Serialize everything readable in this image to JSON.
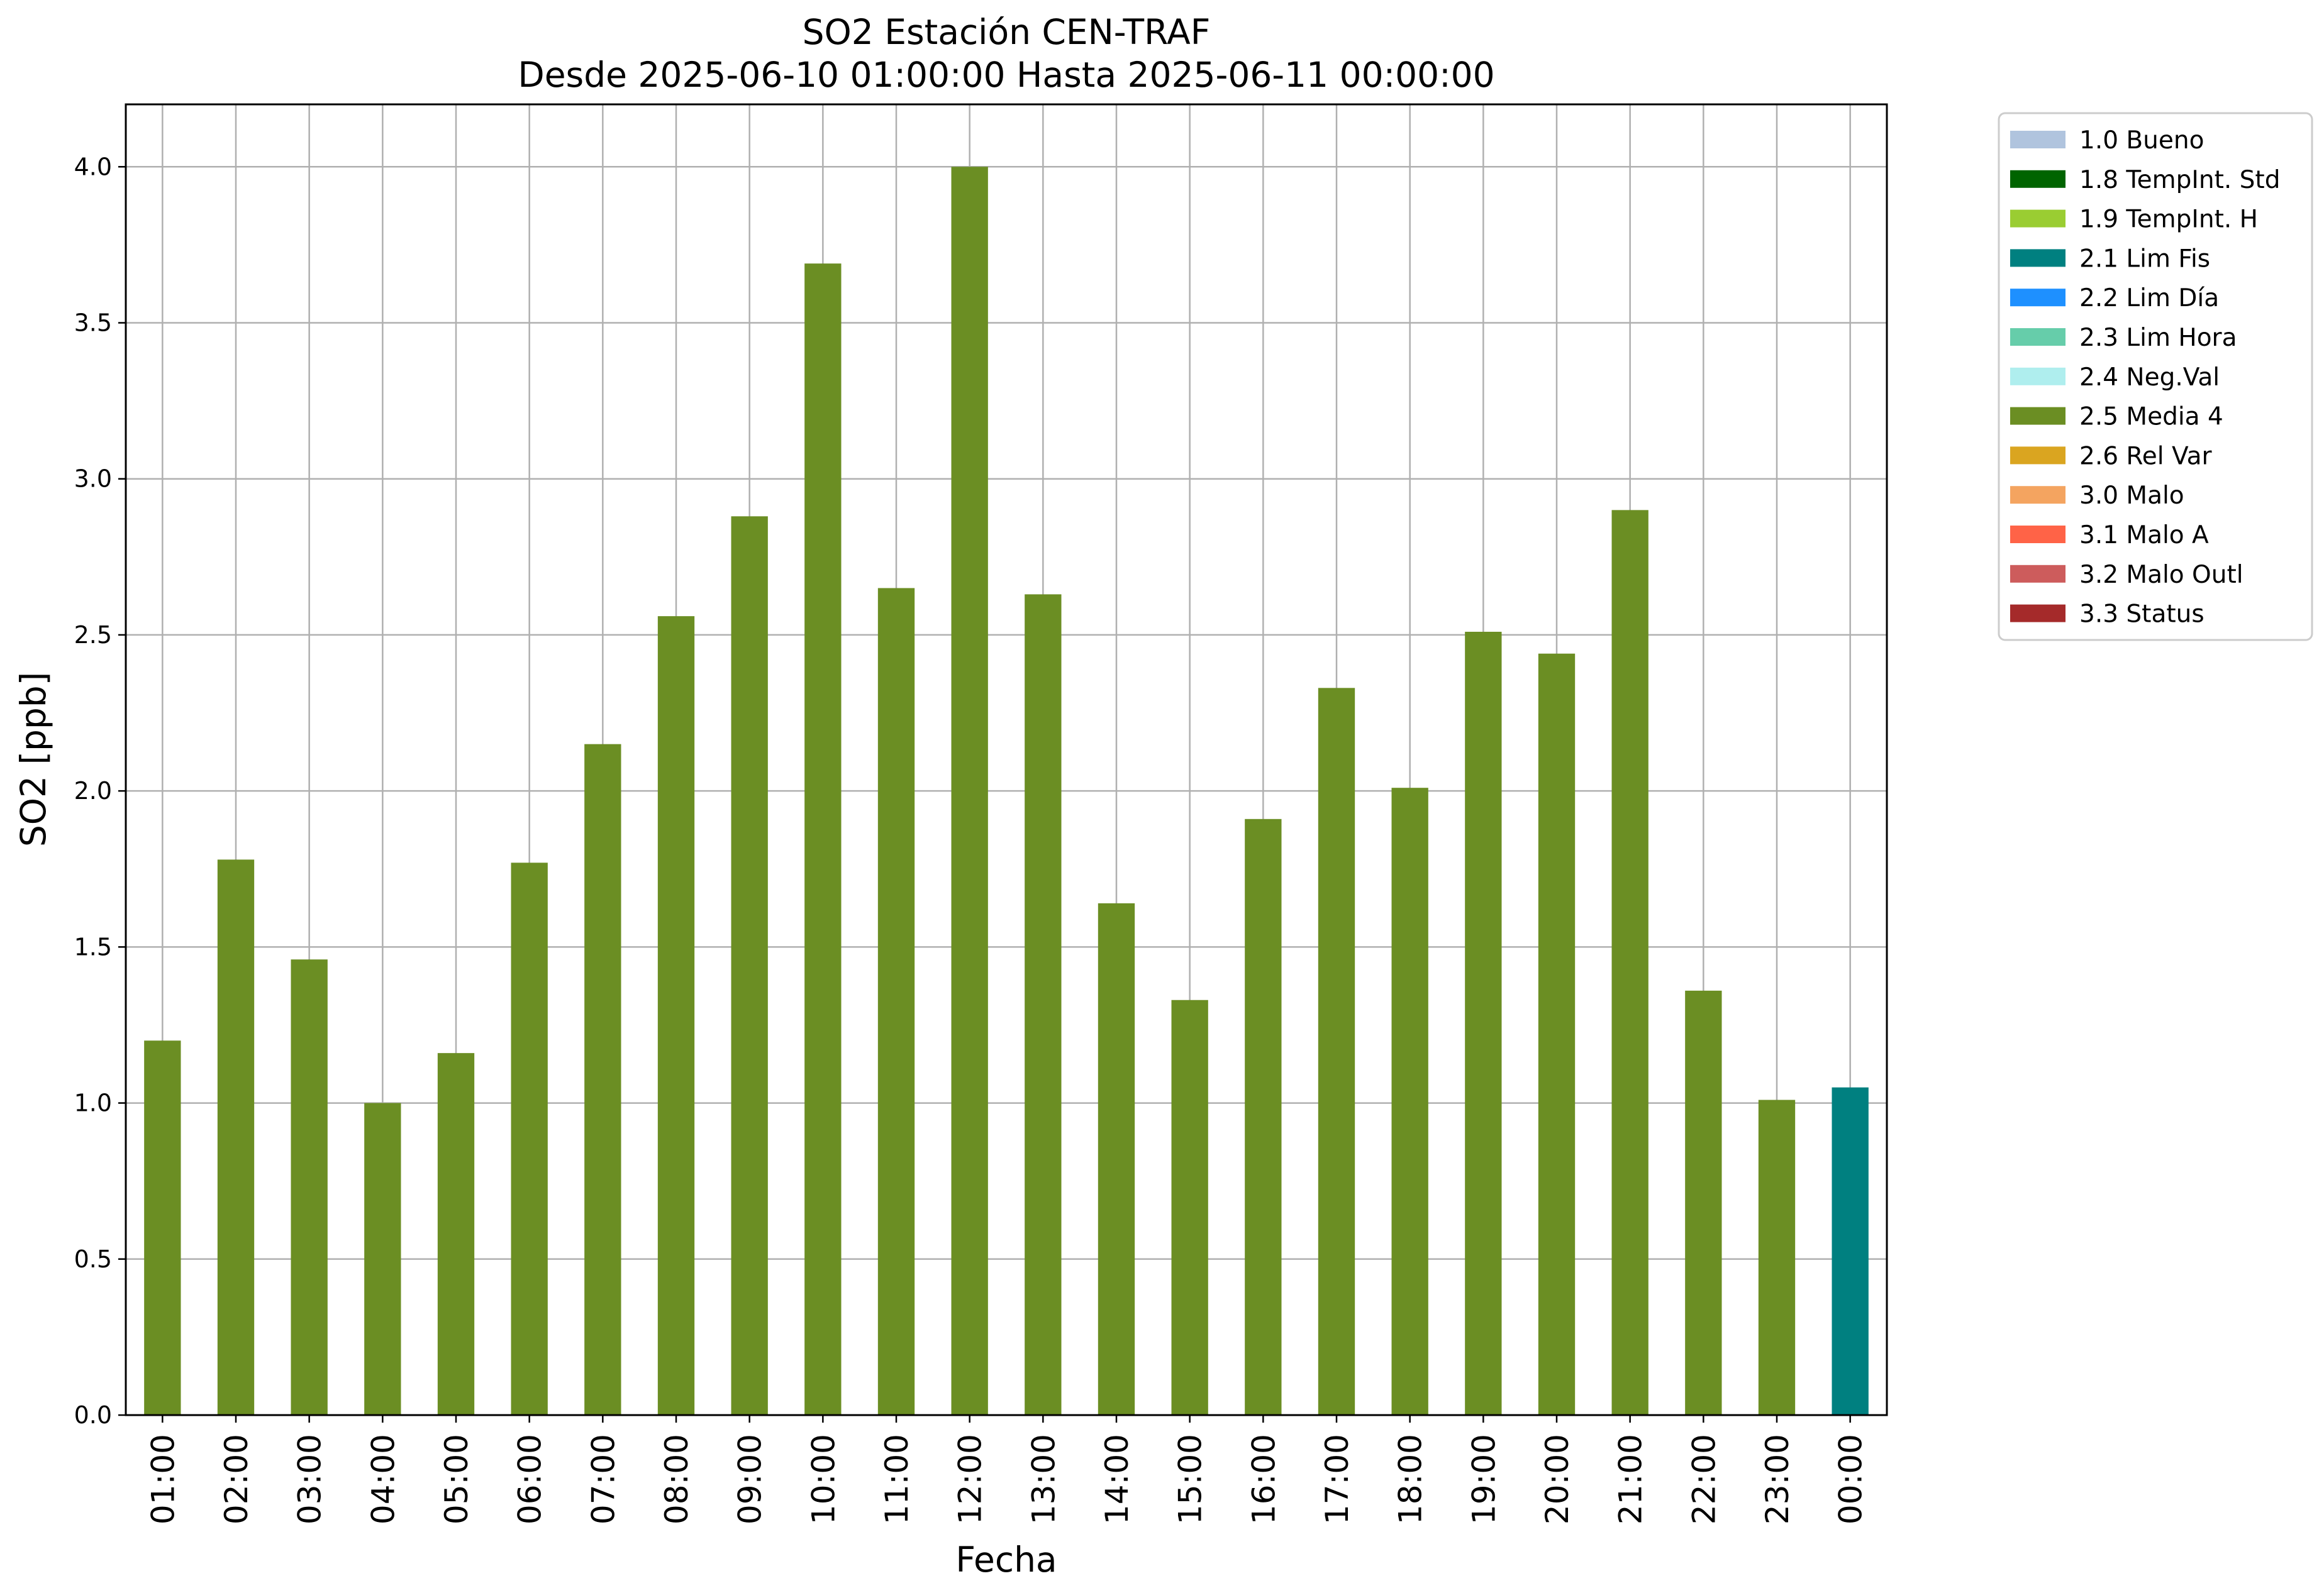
{
  "chart_data": {
    "type": "bar",
    "title": "SO2 Estación CEN-TRAF",
    "subtitle": "Desde 2025-06-10 01:00:00 Hasta 2025-06-11 00:00:00",
    "xlabel": "Fecha",
    "ylabel": "SO2 [ppb]",
    "ylim": [
      0,
      4.2
    ],
    "yticks": [
      "0.0",
      "0.5",
      "1.0",
      "1.5",
      "2.0",
      "2.5",
      "3.0",
      "3.5",
      "4.0"
    ],
    "grid": true,
    "legend_position": "outside-top-right",
    "categories": [
      "01:00",
      "02:00",
      "03:00",
      "04:00",
      "05:00",
      "06:00",
      "07:00",
      "08:00",
      "09:00",
      "10:00",
      "11:00",
      "12:00",
      "13:00",
      "14:00",
      "15:00",
      "16:00",
      "17:00",
      "18:00",
      "19:00",
      "20:00",
      "21:00",
      "22:00",
      "23:00",
      "00:00"
    ],
    "values": [
      1.2,
      1.78,
      1.46,
      1.0,
      1.16,
      1.77,
      2.15,
      2.56,
      2.88,
      3.69,
      2.65,
      4.0,
      2.63,
      1.64,
      1.33,
      1.91,
      2.33,
      2.01,
      2.51,
      2.44,
      2.9,
      1.36,
      1.01,
      1.05
    ],
    "bar_flags": [
      "2.5 Media 4",
      "2.5 Media 4",
      "2.5 Media 4",
      "2.5 Media 4",
      "2.5 Media 4",
      "2.5 Media 4",
      "2.5 Media 4",
      "2.5 Media 4",
      "2.5 Media 4",
      "2.5 Media 4",
      "2.5 Media 4",
      "2.5 Media 4",
      "2.5 Media 4",
      "2.5 Media 4",
      "2.5 Media 4",
      "2.5 Media 4",
      "2.5 Media 4",
      "2.5 Media 4",
      "2.5 Media 4",
      "2.5 Media 4",
      "2.5 Media 4",
      "2.5 Media 4",
      "2.5 Media 4",
      "2.1 Lim Fis"
    ],
    "legend": [
      {
        "label": "1.0 Bueno",
        "color": "#b0c4de"
      },
      {
        "label": "1.8 TempInt. Std",
        "color": "#006400"
      },
      {
        "label": "1.9 TempInt. H",
        "color": "#9acd32"
      },
      {
        "label": "2.1 Lim Fis",
        "color": "#008080"
      },
      {
        "label": "2.2 Lim Día",
        "color": "#1e90ff"
      },
      {
        "label": "2.3 Lim Hora",
        "color": "#66cdaa"
      },
      {
        "label": "2.4 Neg.Val",
        "color": "#afeeee"
      },
      {
        "label": "2.5 Media 4",
        "color": "#6b8e23"
      },
      {
        "label": "2.6 Rel Var",
        "color": "#daa520"
      },
      {
        "label": "3.0 Malo",
        "color": "#f4a460"
      },
      {
        "label": "3.1 Malo A",
        "color": "#ff6347"
      },
      {
        "label": "3.2 Malo Outl",
        "color": "#cd5c5c"
      },
      {
        "label": "3.3 Status",
        "color": "#a52a2a"
      }
    ]
  }
}
